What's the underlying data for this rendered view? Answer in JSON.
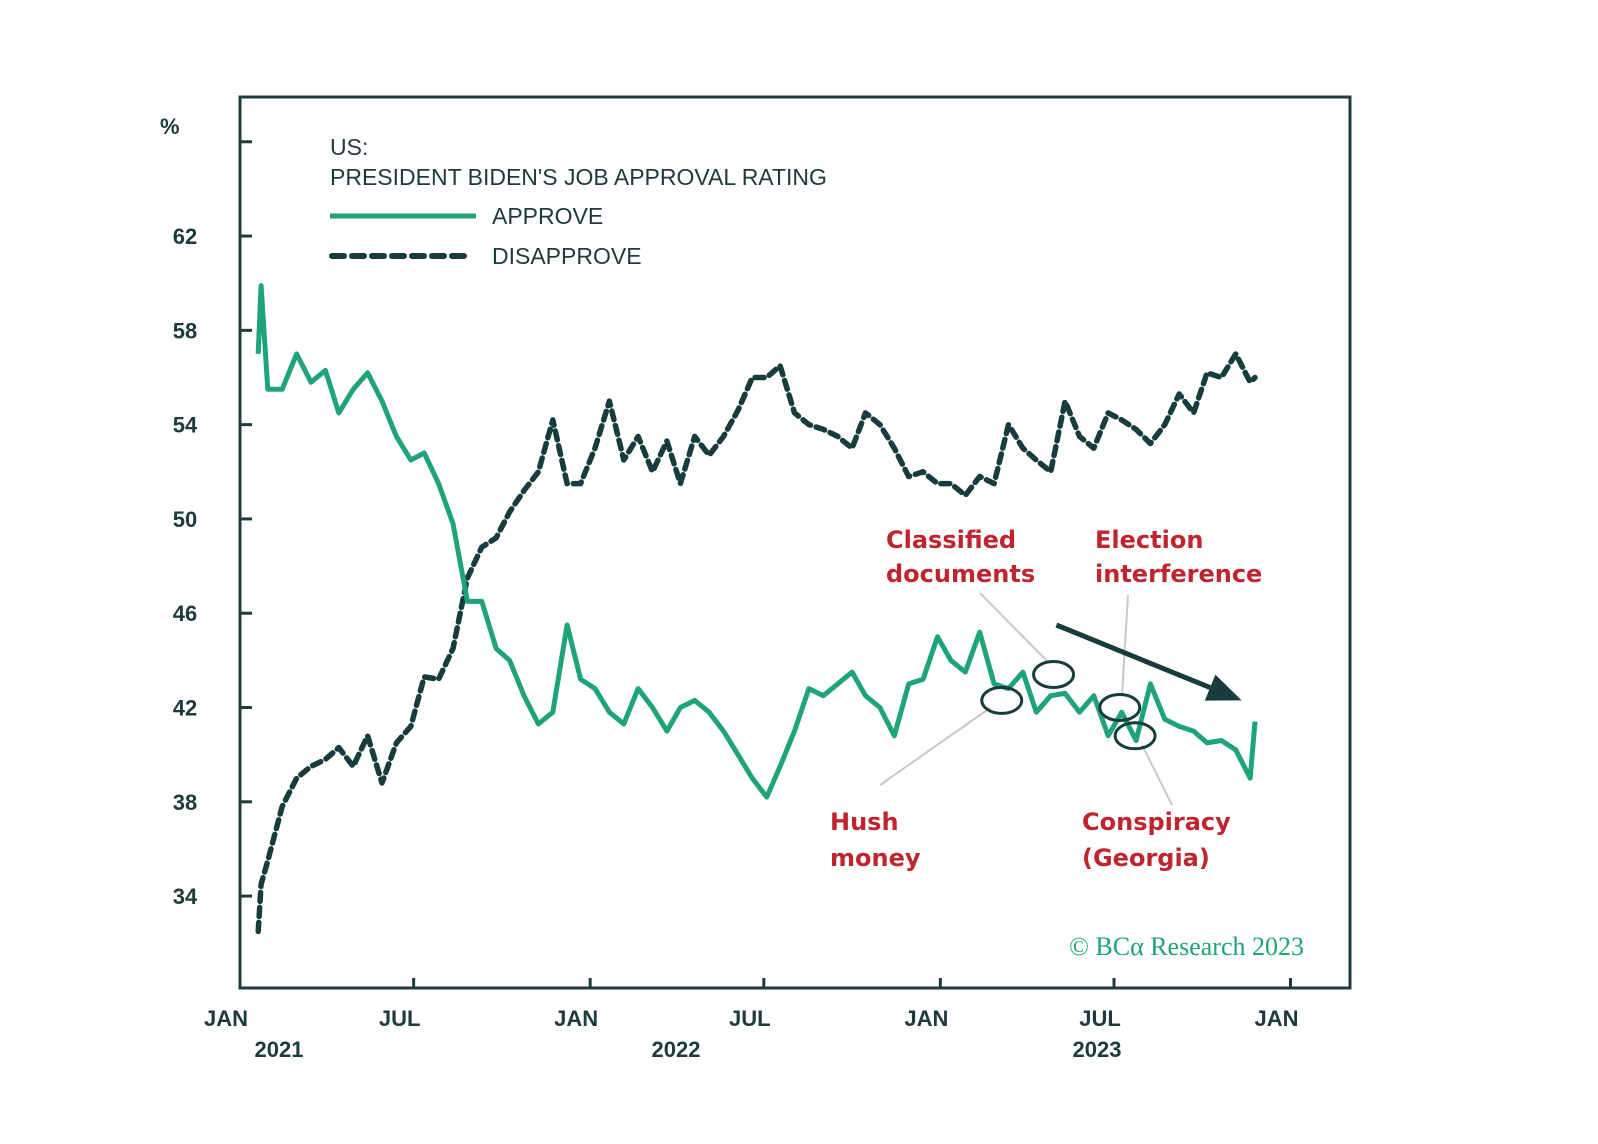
{
  "chart_data": {
    "type": "line",
    "title": "US:",
    "subtitle": "PRESIDENT BIDEN'S JOB APPROVAL RATING",
    "ylabel": "%",
    "xlabel": "",
    "ylim": [
      30.1,
      67.9
    ],
    "xlim": [
      "2021-01-01",
      "2024-03-03"
    ],
    "y_ticks": [
      34,
      38,
      42,
      46,
      50,
      54,
      58,
      62,
      66
    ],
    "y_tick_labels": [
      "34",
      "38",
      "42",
      "46",
      "50",
      "54",
      "58",
      "62"
    ],
    "x_ticks": [
      {
        "date": "2021-01-01",
        "label": "JAN"
      },
      {
        "date": "2021-07-01",
        "label": "JUL"
      },
      {
        "date": "2022-01-01",
        "label": "JAN"
      },
      {
        "date": "2022-07-01",
        "label": "JUL"
      },
      {
        "date": "2023-01-01",
        "label": "JAN"
      },
      {
        "date": "2023-07-01",
        "label": "JUL"
      },
      {
        "date": "2024-01-01",
        "label": "JAN"
      }
    ],
    "year_labels": [
      "2021",
      "2022",
      "2023"
    ],
    "grid": false,
    "legend_position": "top-left",
    "x": [
      "2021-01-20",
      "2021-01-23",
      "2021-01-30",
      "2021-02-14",
      "2021-03-01",
      "2021-03-16",
      "2021-03-31",
      "2021-04-14",
      "2021-04-29",
      "2021-05-14",
      "2021-05-29",
      "2021-06-13",
      "2021-06-28",
      "2021-07-12",
      "2021-07-27",
      "2021-08-11",
      "2021-08-26",
      "2021-09-10",
      "2021-09-25",
      "2021-10-09",
      "2021-10-24",
      "2021-11-08",
      "2021-11-23",
      "2021-12-08",
      "2021-12-22",
      "2022-01-06",
      "2022-01-21",
      "2022-02-05",
      "2022-02-20",
      "2022-03-07",
      "2022-03-22",
      "2022-04-05",
      "2022-04-20",
      "2022-05-05",
      "2022-05-20",
      "2022-06-04",
      "2022-06-19",
      "2022-07-04",
      "2022-07-18",
      "2022-08-02",
      "2022-08-17",
      "2022-09-01",
      "2022-09-16",
      "2022-10-01",
      "2022-10-15",
      "2022-10-30",
      "2022-11-14",
      "2022-11-29",
      "2022-12-14",
      "2022-12-29",
      "2023-01-12",
      "2023-01-27",
      "2023-02-11",
      "2023-02-26",
      "2023-03-13",
      "2023-03-28",
      "2023-04-11",
      "2023-04-26",
      "2023-05-11",
      "2023-05-26",
      "2023-06-10",
      "2023-06-25",
      "2023-07-09",
      "2023-07-24",
      "2023-08-08",
      "2023-08-23",
      "2023-09-07",
      "2023-09-22",
      "2023-10-06",
      "2023-10-21",
      "2023-11-05",
      "2023-11-20",
      "2023-11-25"
    ],
    "series": [
      {
        "name": "APPROVE",
        "color": "#1fa37b",
        "style": "solid",
        "values": [
          57.0,
          59.9,
          55.5,
          55.5,
          57.0,
          55.8,
          56.3,
          54.5,
          55.5,
          56.2,
          55.0,
          53.5,
          52.5,
          52.8,
          51.5,
          49.8,
          46.5,
          46.5,
          44.5,
          44.0,
          42.5,
          41.3,
          41.8,
          45.5,
          43.2,
          42.8,
          41.8,
          41.3,
          42.8,
          42.0,
          41.0,
          42.0,
          42.3,
          41.8,
          41.0,
          40.0,
          39.0,
          38.2,
          39.5,
          41.0,
          42.8,
          42.5,
          43.0,
          43.5,
          42.5,
          42.0,
          40.8,
          43.0,
          43.2,
          45.0,
          44.0,
          43.5,
          45.2,
          43.0,
          42.8,
          43.5,
          41.8,
          42.5,
          42.6,
          41.8,
          42.5,
          40.8,
          41.8,
          40.6,
          43.0,
          41.5,
          41.2,
          41.0,
          40.5,
          40.6,
          40.2,
          39.0,
          41.4
        ]
      },
      {
        "name": "DISAPPROVE",
        "color": "#163c3e",
        "style": "dashed",
        "values": [
          32.5,
          34.5,
          35.5,
          37.8,
          39.0,
          39.5,
          39.8,
          40.3,
          39.5,
          40.8,
          38.8,
          40.5,
          41.2,
          43.3,
          43.2,
          44.5,
          47.5,
          48.8,
          49.2,
          50.3,
          51.2,
          52.0,
          54.2,
          51.5,
          51.5,
          53.0,
          55.0,
          52.5,
          53.5,
          52.0,
          53.3,
          51.5,
          53.5,
          52.7,
          53.5,
          54.6,
          56.0,
          56.0,
          56.5,
          54.5,
          54.0,
          53.8,
          53.5,
          53.0,
          54.5,
          54.0,
          53.0,
          51.8,
          52.0,
          51.5,
          51.5,
          51.0,
          51.8,
          51.5,
          54.0,
          53.0,
          52.5,
          52.0,
          55.0,
          53.5,
          53.0,
          54.5,
          54.2,
          53.8,
          53.2,
          54.0,
          55.3,
          54.5,
          56.2,
          56.0,
          57.0,
          55.8,
          56.0
        ]
      }
    ],
    "annotations": [
      {
        "lines": [
          "Classified",
          "documents"
        ],
        "date": "2023-04-29",
        "value": 43.4
      },
      {
        "lines": [
          "Election",
          "interference"
        ],
        "date": "2023-07-07",
        "value": 42.0
      },
      {
        "lines": [
          "Hush",
          "money"
        ],
        "date": "2023-03-06",
        "value": 42.3
      },
      {
        "lines": [
          "Conspiracy",
          "(Georgia)"
        ],
        "date": "2023-07-23",
        "value": 40.8
      }
    ],
    "trend_arrow": {
      "from": {
        "date": "2023-05-02",
        "value": 45.5
      },
      "to": {
        "date": "2023-11-11",
        "value": 42.3
      }
    },
    "colors": {
      "approve": "#1fa37b",
      "disapprove": "#163c3e",
      "annotation": "#c0242f",
      "axis": "#1f3b3d"
    }
  },
  "copyright": "© BCα Research 2023"
}
